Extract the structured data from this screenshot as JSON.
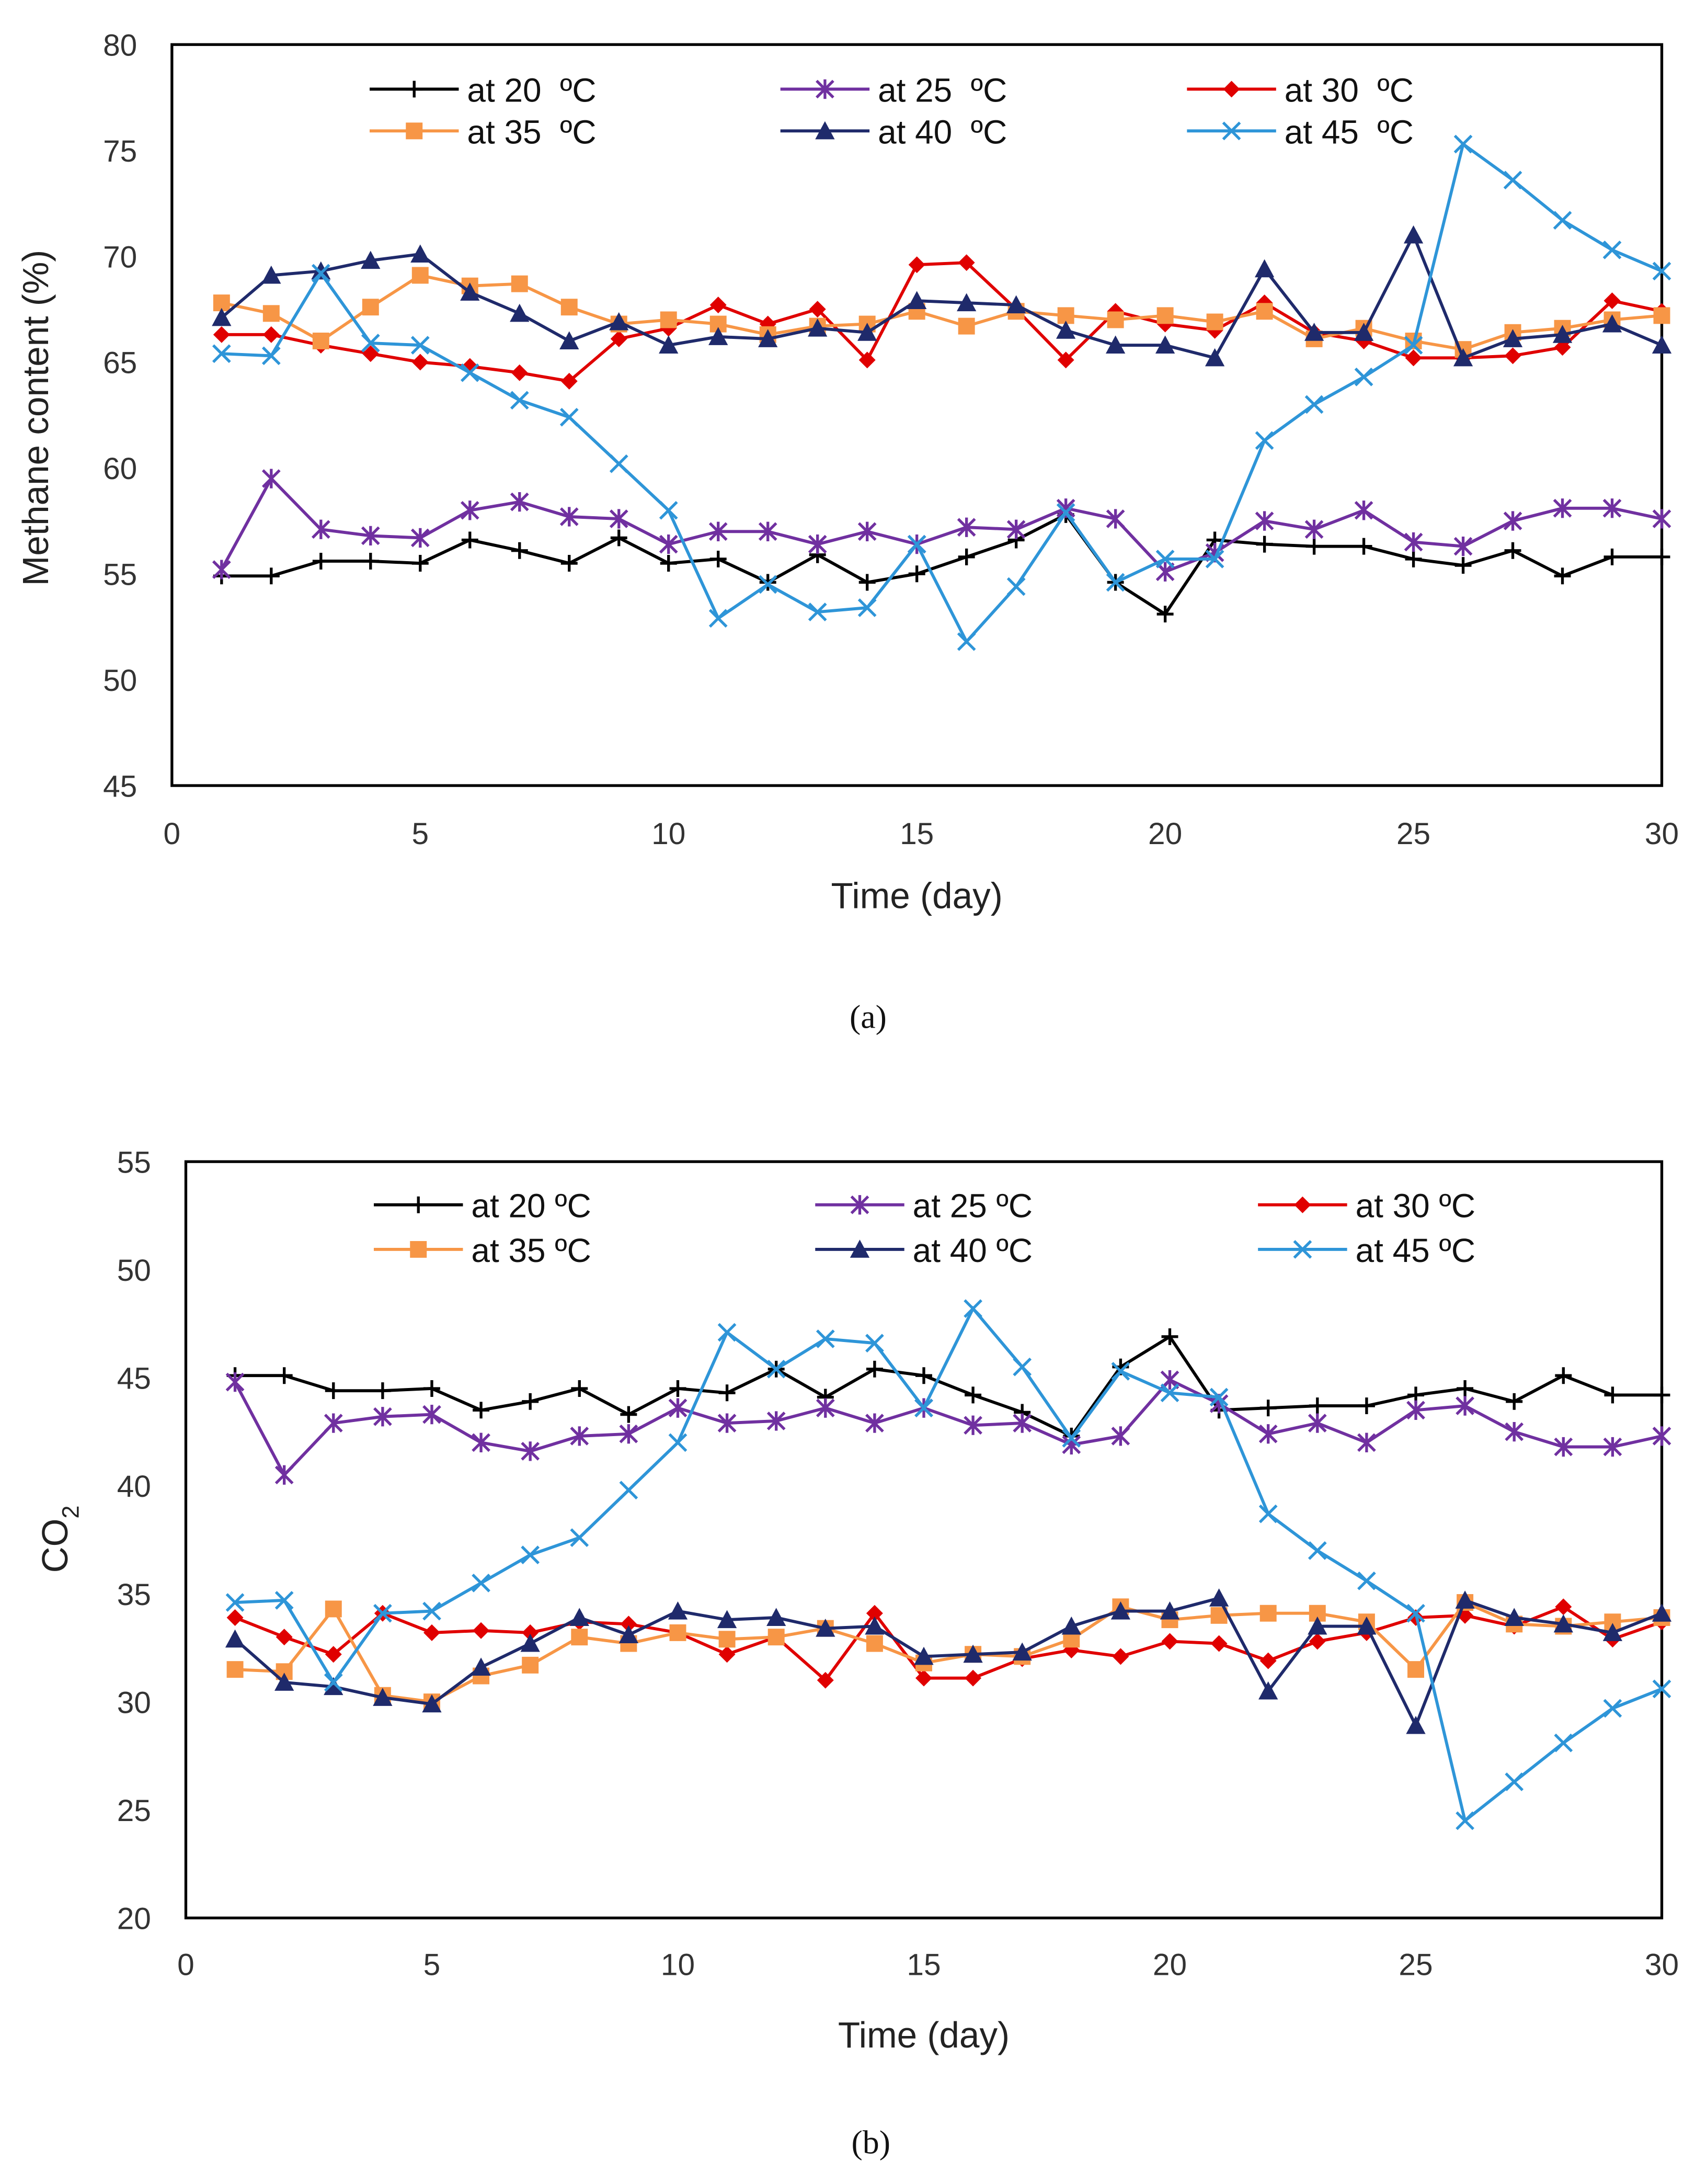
{
  "colors": {
    "t20": "#000000",
    "t25": "#7030A0",
    "t30": "#E00000",
    "t35": "#F79646",
    "t40": "#1F2A6B",
    "t45": "#2E95D8"
  },
  "chart_data": [
    {
      "type": "line",
      "caption": "(a)",
      "xlabel": "Time (day)",
      "ylabel": "Methane content (%)",
      "xlim": [
        0,
        30
      ],
      "ylim": [
        45,
        80
      ],
      "xticks": [
        0,
        5,
        10,
        15,
        20,
        25,
        30
      ],
      "yticks": [
        45,
        50,
        55,
        60,
        65,
        70,
        75,
        80
      ],
      "legend_placement": "top",
      "x": [
        1,
        2,
        3,
        4,
        5,
        6,
        7,
        8,
        9,
        10,
        11,
        12,
        13,
        14,
        15,
        16,
        17,
        18,
        19,
        20,
        21,
        22,
        23,
        24,
        25,
        26,
        27,
        28,
        29,
        30
      ],
      "series": [
        {
          "key": "t20",
          "name": "at 20  ºC",
          "marker": "plus",
          "values": [
            54.9,
            54.9,
            55.6,
            55.6,
            55.5,
            56.6,
            56.1,
            55.5,
            56.7,
            55.5,
            55.7,
            54.6,
            55.9,
            54.6,
            55.0,
            55.8,
            56.6,
            57.8,
            54.6,
            53.1,
            56.6,
            56.4,
            56.3,
            56.3,
            55.7,
            55.4,
            56.1,
            54.9,
            55.8,
            55.8
          ]
        },
        {
          "key": "t25",
          "name": "at 25  ºC",
          "marker": "star",
          "values": [
            55.2,
            59.5,
            57.1,
            56.8,
            56.7,
            58.0,
            58.4,
            57.7,
            57.6,
            56.4,
            57.0,
            57.0,
            56.4,
            57.0,
            56.4,
            57.2,
            57.1,
            58.1,
            57.6,
            55.1,
            56.0,
            57.5,
            57.1,
            58.0,
            56.5,
            56.3,
            57.5,
            58.1,
            58.1,
            57.6
          ]
        },
        {
          "key": "t30",
          "name": "at 30  ºC",
          "marker": "diamond",
          "values": [
            66.3,
            66.3,
            65.8,
            65.4,
            65.0,
            64.8,
            64.5,
            64.1,
            66.1,
            66.6,
            67.7,
            66.8,
            67.5,
            65.1,
            69.6,
            69.7,
            67.5,
            65.1,
            67.4,
            66.8,
            66.5,
            67.8,
            66.4,
            66.0,
            65.2,
            65.2,
            65.3,
            65.7,
            67.9,
            67.4
          ]
        },
        {
          "key": "t35",
          "name": "at 35  ºC",
          "marker": "square",
          "values": [
            67.8,
            67.3,
            66.0,
            67.6,
            69.1,
            68.6,
            68.7,
            67.6,
            66.8,
            67.0,
            66.8,
            66.3,
            66.7,
            66.8,
            67.4,
            66.7,
            67.4,
            67.2,
            67.0,
            67.2,
            66.9,
            67.4,
            66.1,
            66.6,
            66.0,
            65.6,
            66.4,
            66.6,
            67.0,
            67.2
          ]
        },
        {
          "key": "t40",
          "name": "at 40  ºC",
          "marker": "triangle",
          "values": [
            67.1,
            69.1,
            69.3,
            69.8,
            70.1,
            68.3,
            67.3,
            66.0,
            66.9,
            65.8,
            66.2,
            66.1,
            66.6,
            66.4,
            67.9,
            67.8,
            67.7,
            66.5,
            65.8,
            65.8,
            65.2,
            69.4,
            66.4,
            66.4,
            71.0,
            65.2,
            66.1,
            66.3,
            66.8,
            65.8
          ]
        },
        {
          "key": "t45",
          "name": "at 45  ºC",
          "marker": "x",
          "values": [
            65.4,
            65.3,
            69.2,
            65.9,
            65.8,
            64.5,
            63.2,
            62.4,
            60.2,
            58.0,
            52.9,
            54.5,
            53.2,
            53.4,
            56.4,
            51.8,
            54.4,
            57.9,
            54.6,
            55.7,
            55.7,
            61.3,
            63.0,
            64.3,
            65.8,
            75.3,
            73.6,
            71.7,
            70.3,
            69.3
          ]
        }
      ]
    },
    {
      "type": "line",
      "caption": "(b)",
      "xlabel": "Time (day)",
      "ylabel": "CO",
      "ylabel_sub": "2",
      "xlim": [
        0,
        30
      ],
      "ylim": [
        20,
        55
      ],
      "xticks": [
        0,
        5,
        10,
        15,
        20,
        25,
        30
      ],
      "yticks": [
        20,
        25,
        30,
        35,
        40,
        45,
        50,
        55
      ],
      "legend_placement": "top",
      "x": [
        1,
        2,
        3,
        4,
        5,
        6,
        7,
        8,
        9,
        10,
        11,
        12,
        13,
        14,
        15,
        16,
        17,
        18,
        19,
        20,
        21,
        22,
        23,
        24,
        25,
        26,
        27,
        28,
        29,
        30
      ],
      "series": [
        {
          "key": "t20",
          "name": "at 20 ºC",
          "marker": "plus",
          "values": [
            45.1,
            45.1,
            44.4,
            44.4,
            44.5,
            43.5,
            43.9,
            44.5,
            43.3,
            44.5,
            44.3,
            45.4,
            44.1,
            45.4,
            45.1,
            44.2,
            43.4,
            42.3,
            45.5,
            46.9,
            43.5,
            43.6,
            43.7,
            43.7,
            44.2,
            44.5,
            43.9,
            45.1,
            44.2,
            44.2
          ]
        },
        {
          "key": "t25",
          "name": "at 25 ºC",
          "marker": "star",
          "values": [
            44.8,
            40.5,
            42.9,
            43.2,
            43.3,
            42.0,
            41.6,
            42.3,
            42.4,
            43.6,
            42.9,
            43.0,
            43.6,
            42.9,
            43.6,
            42.8,
            42.9,
            41.9,
            42.3,
            44.9,
            43.8,
            42.4,
            42.9,
            42.0,
            43.5,
            43.7,
            42.5,
            41.8,
            41.8,
            42.3
          ]
        },
        {
          "key": "t30",
          "name": "at 30 ºC",
          "marker": "diamond",
          "values": [
            33.9,
            33.0,
            32.2,
            34.1,
            33.2,
            33.3,
            33.2,
            33.7,
            33.6,
            33.2,
            32.2,
            33.0,
            31.0,
            34.1,
            31.1,
            31.1,
            32.0,
            32.4,
            32.1,
            32.8,
            32.7,
            31.9,
            32.8,
            33.2,
            33.9,
            34.0,
            33.5,
            34.4,
            32.9,
            33.7
          ]
        },
        {
          "key": "t35",
          "name": "at 35 ºC",
          "marker": "square",
          "values": [
            31.5,
            31.4,
            34.3,
            30.3,
            30.0,
            31.2,
            31.7,
            33.0,
            32.7,
            33.2,
            32.9,
            33.0,
            33.4,
            32.7,
            31.8,
            32.2,
            32.1,
            32.9,
            34.4,
            33.8,
            34.0,
            34.1,
            34.1,
            33.7,
            31.5,
            34.6,
            33.6,
            33.5,
            33.7,
            33.9
          ]
        },
        {
          "key": "t40",
          "name": "at 40 ºC",
          "marker": "triangle",
          "values": [
            32.9,
            30.9,
            30.7,
            30.2,
            29.9,
            31.6,
            32.7,
            33.9,
            33.1,
            34.2,
            33.8,
            33.9,
            33.4,
            33.5,
            32.1,
            32.2,
            32.3,
            33.5,
            34.2,
            34.2,
            34.8,
            30.5,
            33.5,
            33.5,
            28.9,
            34.7,
            33.9,
            33.6,
            33.2,
            34.1
          ]
        },
        {
          "key": "t45",
          "name": "at 45 ºC",
          "marker": "x",
          "values": [
            34.6,
            34.7,
            30.9,
            34.1,
            34.2,
            35.5,
            36.8,
            37.6,
            39.8,
            42.0,
            47.1,
            45.4,
            46.8,
            46.6,
            43.6,
            48.2,
            45.5,
            42.2,
            45.3,
            44.3,
            44.1,
            38.7,
            37.0,
            35.6,
            34.1,
            24.5,
            26.3,
            28.1,
            29.7,
            30.6
          ]
        }
      ]
    }
  ]
}
